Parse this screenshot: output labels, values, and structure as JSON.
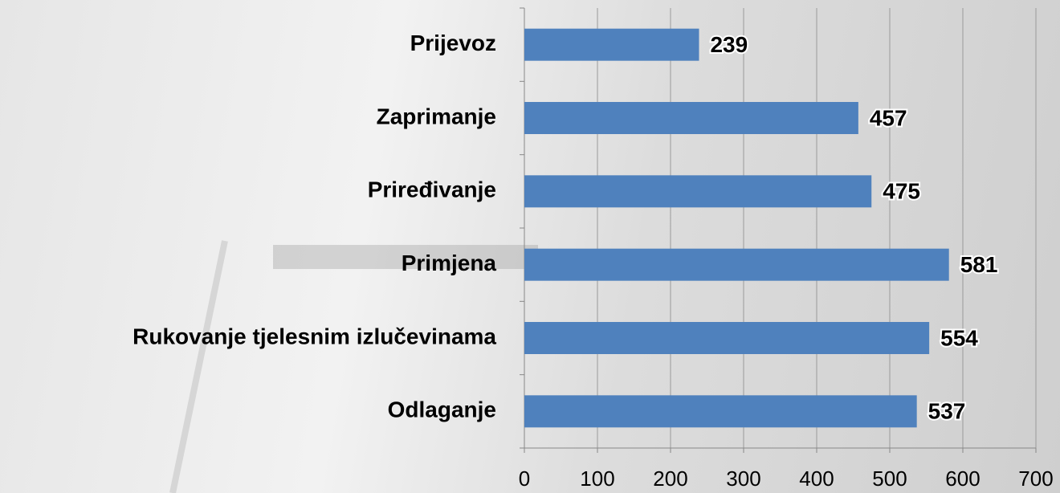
{
  "chart_data": {
    "type": "bar",
    "orientation": "horizontal",
    "categories": [
      "Prijevoz",
      "Zaprimanje",
      "Priređivanje",
      "Primjena",
      "Rukovanje tjelesnim izlučevinama",
      "Odlaganje"
    ],
    "values": [
      239,
      457,
      475,
      581,
      554,
      537
    ],
    "color": "#4f81bd",
    "xlim": [
      0,
      700
    ],
    "xticks": [
      0,
      100,
      200,
      300,
      400,
      500,
      600,
      700
    ],
    "grid": true
  }
}
